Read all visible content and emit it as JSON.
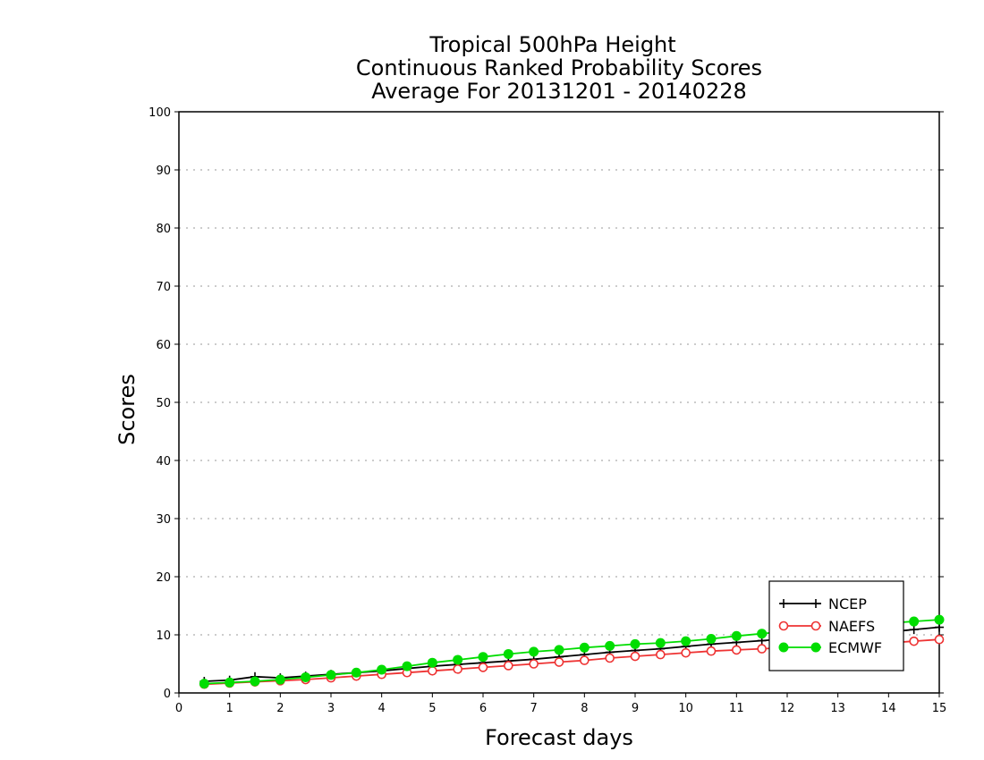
{
  "chart_data": {
    "type": "line",
    "title_lines": [
      "Tropical 500hPa Height",
      "Continuous Ranked Probability Scores",
      "Average For 20131201 - 20140228"
    ],
    "xlabel": "Forecast days",
    "ylabel": "Scores",
    "xlim": [
      0,
      15
    ],
    "ylim": [
      0,
      100
    ],
    "xticks": [
      0,
      1,
      2,
      3,
      4,
      5,
      6,
      7,
      8,
      9,
      10,
      11,
      12,
      13,
      14,
      15
    ],
    "yticks": [
      0,
      10,
      20,
      30,
      40,
      50,
      60,
      70,
      80,
      90,
      100
    ],
    "grid": "horizontal dotted",
    "legend_position": "bottom-right",
    "x": [
      0.5,
      1,
      1.5,
      2,
      2.5,
      3,
      3.5,
      4,
      4.5,
      5,
      5.5,
      6,
      6.5,
      7,
      7.5,
      8,
      8.5,
      9,
      9.5,
      10,
      10.5,
      11,
      11.5,
      12,
      12.5,
      13,
      13.5,
      14,
      14.5,
      15
    ],
    "series": [
      {
        "name": "NCEP",
        "color": "#000000",
        "marker": "plus",
        "values": [
          2.0,
          2.2,
          2.8,
          2.6,
          2.9,
          3.2,
          3.5,
          3.8,
          4.2,
          4.6,
          4.9,
          5.2,
          5.5,
          5.8,
          6.2,
          6.6,
          7.0,
          7.3,
          7.6,
          8.0,
          8.4,
          8.7,
          9.0,
          9.3,
          9.6,
          9.9,
          10.2,
          10.5,
          10.9,
          11.3
        ]
      },
      {
        "name": "NAEFS",
        "color": "#ee3333",
        "marker": "open-circle",
        "values": [
          1.5,
          1.7,
          1.9,
          2.1,
          2.3,
          2.6,
          2.9,
          3.2,
          3.5,
          3.8,
          4.1,
          4.4,
          4.7,
          5.0,
          5.3,
          5.6,
          6.0,
          6.3,
          6.6,
          6.9,
          7.2,
          7.4,
          7.6,
          7.8,
          8.0,
          8.2,
          8.4,
          8.6,
          8.9,
          9.2
        ]
      },
      {
        "name": "ECMWF",
        "color": "#00dd00",
        "marker": "filled-circle",
        "values": [
          1.6,
          1.8,
          2.0,
          2.3,
          2.7,
          3.1,
          3.5,
          4.0,
          4.6,
          5.2,
          5.7,
          6.2,
          6.7,
          7.1,
          7.4,
          7.8,
          8.1,
          8.4,
          8.6,
          8.9,
          9.3,
          9.8,
          10.2,
          10.6,
          11.0,
          11.4,
          11.7,
          12.0,
          12.3,
          12.6
        ]
      }
    ]
  }
}
